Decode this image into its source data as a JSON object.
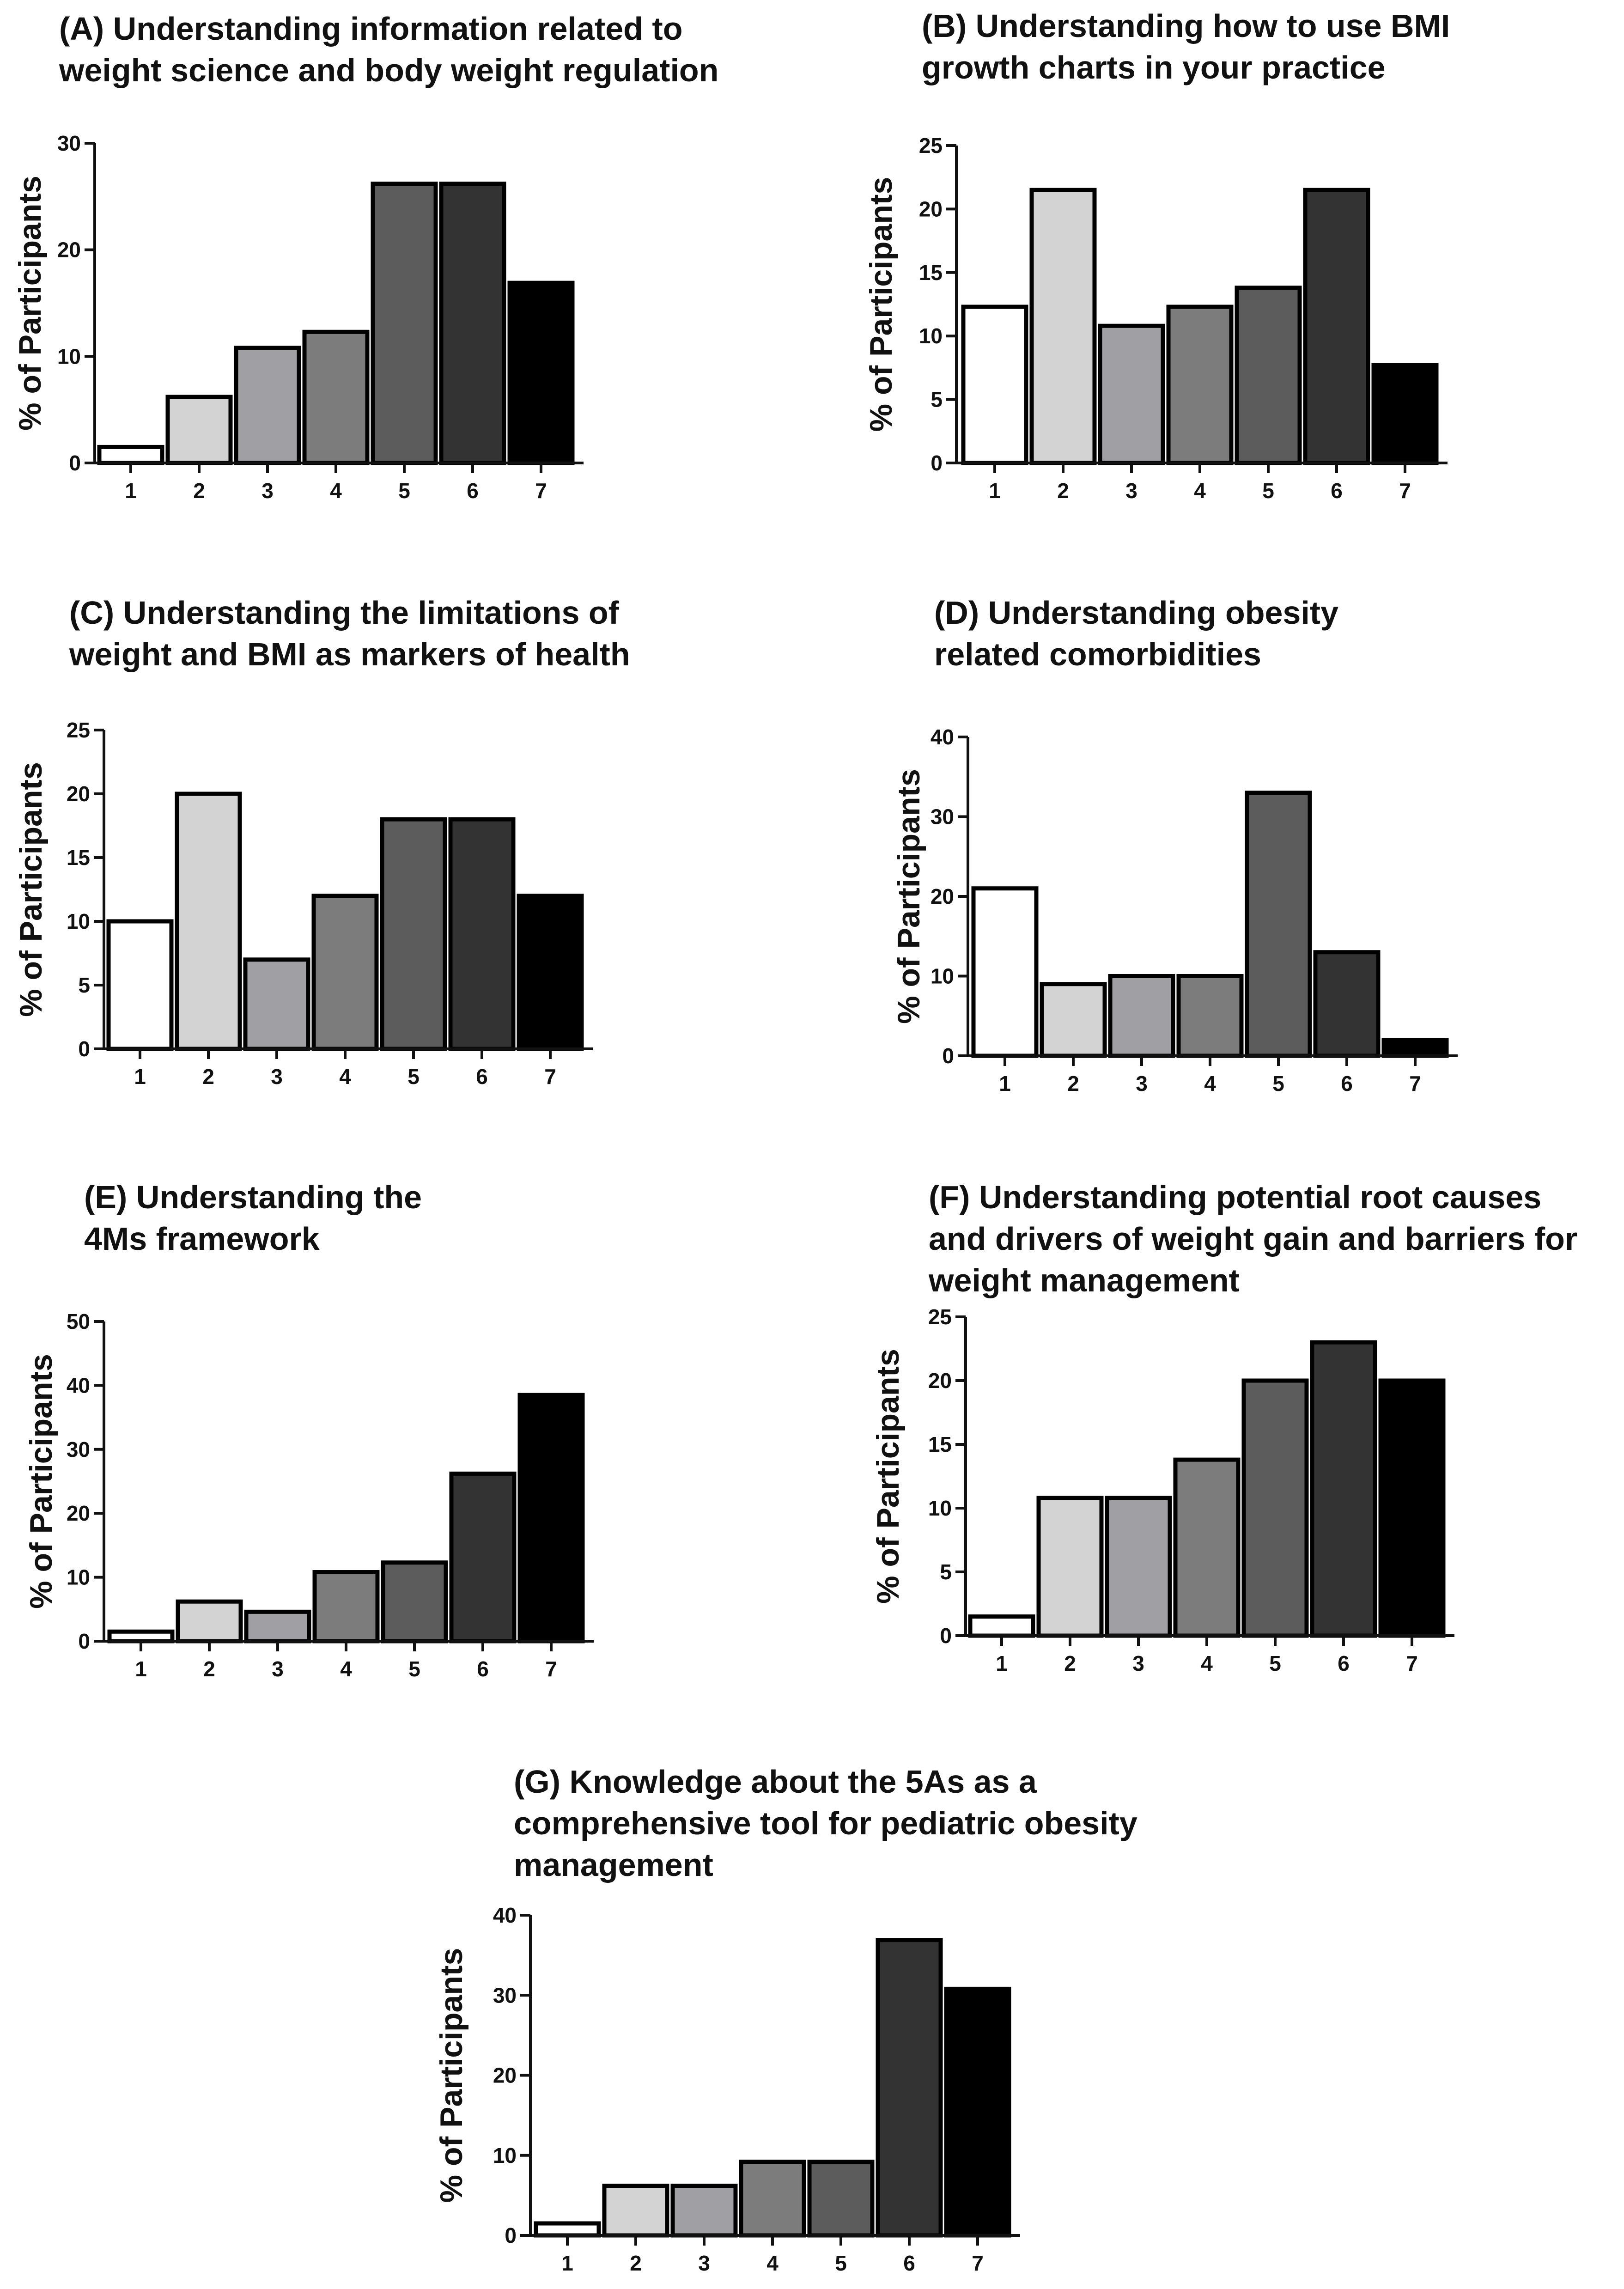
{
  "figure": {
    "bar_colors": [
      "#ffffff",
      "#d3d3d3",
      "#a0a0a4",
      "#7c7c7c",
      "#5c5c5c",
      "#333333",
      "#000000"
    ],
    "axis_color": "#111111"
  },
  "chart_data": [
    {
      "id": "A",
      "type": "bar",
      "title": [
        "(A) Understanding information related to",
        "weight science and body weight regulation"
      ],
      "xlabel": "",
      "ylabel": "% of Participants",
      "categories": [
        "1",
        "2",
        "3",
        "4",
        "5",
        "6",
        "7"
      ],
      "values": [
        1.5,
        6.2,
        10.8,
        12.3,
        26.2,
        26.2,
        16.9
      ],
      "ylim": [
        0,
        30
      ],
      "yticks": [
        0,
        10,
        20,
        30
      ],
      "grid": false,
      "legend": "none"
    },
    {
      "id": "B",
      "type": "bar",
      "title": [
        "(B) Understanding how to use BMI",
        "growth charts in your practice"
      ],
      "xlabel": "",
      "ylabel": "% of Participants",
      "categories": [
        "1",
        "2",
        "3",
        "4",
        "5",
        "6",
        "7"
      ],
      "values": [
        12.3,
        21.5,
        10.8,
        12.3,
        13.8,
        21.5,
        7.7
      ],
      "ylim": [
        0,
        25
      ],
      "yticks": [
        0,
        5,
        10,
        15,
        20,
        25
      ],
      "grid": false,
      "legend": "none"
    },
    {
      "id": "C",
      "type": "bar",
      "title": [
        "(C) Understanding the limitations of",
        "weight and BMI as markers of health"
      ],
      "xlabel": "",
      "ylabel": "% of Participants",
      "categories": [
        "1",
        "2",
        "3",
        "4",
        "5",
        "6",
        "7"
      ],
      "values": [
        10,
        20,
        7,
        12,
        18,
        18,
        12
      ],
      "ylim": [
        0,
        25
      ],
      "yticks": [
        0,
        5,
        10,
        15,
        20,
        25
      ],
      "grid": false,
      "legend": "none"
    },
    {
      "id": "D",
      "type": "bar",
      "title": [
        "(D) Understanding obesity",
        "related comorbidities"
      ],
      "xlabel": "",
      "ylabel": "% of Participants",
      "categories": [
        "1",
        "2",
        "3",
        "4",
        "5",
        "6",
        "7"
      ],
      "values": [
        21,
        9,
        10,
        10,
        33,
        13,
        2
      ],
      "ylim": [
        0,
        40
      ],
      "yticks": [
        0,
        10,
        20,
        30,
        40
      ],
      "grid": false,
      "legend": "none"
    },
    {
      "id": "E",
      "type": "bar",
      "title": [
        "(E) Understanding the",
        "4Ms framework"
      ],
      "xlabel": "",
      "ylabel": "% of Participants",
      "categories": [
        "1",
        "2",
        "3",
        "4",
        "5",
        "6",
        "7"
      ],
      "values": [
        1.5,
        6.2,
        4.6,
        10.8,
        12.3,
        26.2,
        38.5
      ],
      "ylim": [
        0,
        50
      ],
      "yticks": [
        0,
        10,
        20,
        30,
        40,
        50
      ],
      "grid": false,
      "legend": "none"
    },
    {
      "id": "F",
      "type": "bar",
      "title": [
        "(F) Understanding potential root causes",
        "and drivers of weight gain and barriers for",
        "weight management"
      ],
      "xlabel": "",
      "ylabel": "% of Participants",
      "categories": [
        "1",
        "2",
        "3",
        "4",
        "5",
        "6",
        "7"
      ],
      "values": [
        1.5,
        10.8,
        10.8,
        13.8,
        20,
        23,
        20
      ],
      "ylim": [
        0,
        25
      ],
      "yticks": [
        0,
        5,
        10,
        15,
        20,
        25
      ],
      "grid": false,
      "legend": "none"
    },
    {
      "id": "G",
      "type": "bar",
      "title": [
        "(G) Knowledge about the 5As as a",
        "comprehensive tool for pediatric obesity",
        "management"
      ],
      "xlabel": "",
      "ylabel": "% of Participants",
      "categories": [
        "1",
        "2",
        "3",
        "4",
        "5",
        "6",
        "7"
      ],
      "values": [
        1.5,
        6.2,
        6.2,
        9.2,
        9.2,
        36.9,
        30.8
      ],
      "ylim": [
        0,
        40
      ],
      "yticks": [
        0,
        10,
        20,
        30,
        40
      ],
      "grid": false,
      "legend": "none"
    }
  ]
}
